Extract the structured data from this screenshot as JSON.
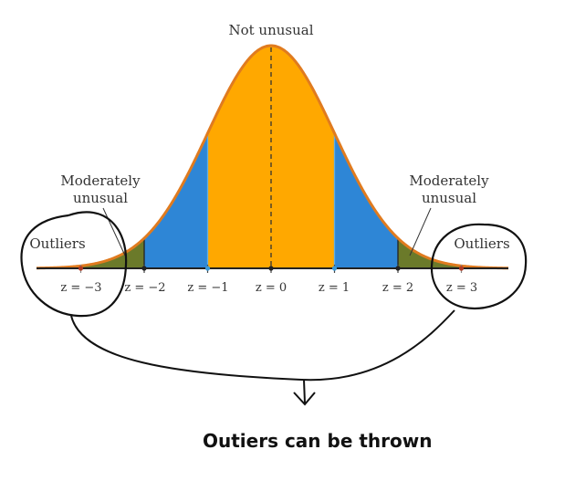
{
  "diagram": {
    "center_label": "Not unusual",
    "left_moderate_label": [
      "Moderately",
      "unusual"
    ],
    "right_moderate_label": [
      "Moderately",
      "unusual"
    ],
    "left_outlier_label": "Outliers",
    "right_outlier_label": "Outliers",
    "z_ticks": [
      "z = −3",
      "z = −2",
      "z = −1",
      "z = 0",
      "z = 1",
      "z = 2",
      "z = 3"
    ],
    "regions": [
      {
        "name": "outliers",
        "range": "|z| > 3",
        "color": "#c0392b"
      },
      {
        "name": "moderately-unusual",
        "range": "2 < |z| < 3",
        "color": "#6b7a2a"
      },
      {
        "name": "within-2",
        "range": "1 < |z| < 2",
        "color": "#2e86d6"
      },
      {
        "name": "not-unusual",
        "range": "|z| < 1",
        "color": "#ffa800"
      }
    ],
    "curve_color": "#e07b1f"
  },
  "annotation": {
    "handwritten_note": "Outiers can be thrown"
  }
}
